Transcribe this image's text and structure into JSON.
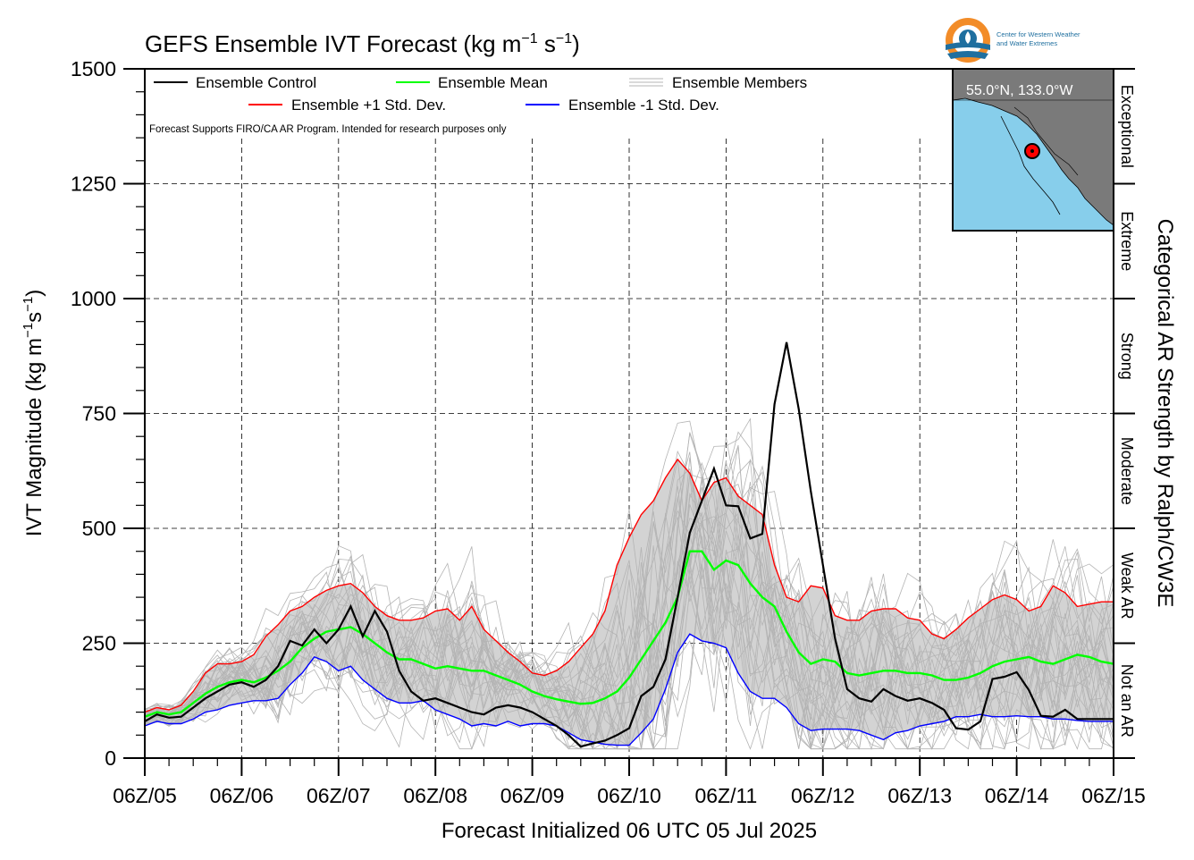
{
  "title_main": "GEFS Ensemble IVT Forecast (kg m",
  "title_exp1": "−1",
  "title_mid": " s",
  "title_exp2": "−1",
  "title_end": ")",
  "ylabel_main": "IVT Magnitude (kg m",
  "ylabel_exp1": "−1",
  "ylabel_mid": "s",
  "ylabel_exp2": "−1",
  "ylabel_end": ")",
  "xlabel": "Forecast Initialized 06 UTC 05 Jul 2025",
  "right_label": "Categorical AR Strength by Ralph/CW3E",
  "legend": {
    "control": "Ensemble Control",
    "mean": "Ensemble Mean",
    "members": "Ensemble Members",
    "plus": "Ensemble +1 Std. Dev.",
    "minus": "Ensemble -1 Std. Dev."
  },
  "disclaimer": "Forecast Supports FIRO/CA AR Program. Intended for research purposes only",
  "logo": {
    "line1": "Center for Western Weather",
    "line2": "and Water Extremes"
  },
  "inset_map": {
    "location_label": "55.0°N, 133.0°W",
    "land_color": "#7a7a7a",
    "water_color": "#87ceeb"
  },
  "categories": [
    {
      "label": "Not an AR",
      "from": 0,
      "to": 250
    },
    {
      "label": "Weak AR",
      "from": 250,
      "to": 500
    },
    {
      "label": "Moderate",
      "from": 500,
      "to": 750
    },
    {
      "label": "Strong",
      "from": 750,
      "to": 1000
    },
    {
      "label": "Extreme",
      "from": 1000,
      "to": 1250
    },
    {
      "label": "Exceptional",
      "from": 1250,
      "to": 1500
    }
  ],
  "chart_data": {
    "type": "line",
    "title": "GEFS Ensemble IVT Forecast (kg m-1 s-1)",
    "xlabel": "Forecast Initialized 06 UTC 05 Jul 2025",
    "ylabel": "IVT Magnitude (kg m-1 s-1)",
    "ylim": [
      0,
      1500
    ],
    "xlim": [
      0,
      240
    ],
    "yticks": [
      0,
      250,
      500,
      750,
      1000,
      1250,
      1500
    ],
    "xticks": [
      0,
      24,
      48,
      72,
      96,
      120,
      144,
      168,
      192,
      216,
      240
    ],
    "xtick_labels": [
      "06Z/05",
      "06Z/06",
      "06Z/07",
      "06Z/08",
      "06Z/09",
      "06Z/10",
      "06Z/11",
      "06Z/12",
      "06Z/13",
      "06Z/14",
      "06Z/15"
    ],
    "x_unit": "forecast hour",
    "grid": true,
    "colors": {
      "control": "#000000",
      "mean": "#00ff00",
      "plus": "#ff0000",
      "minus": "#0000ff",
      "members": "#b4b4b4",
      "band": "#d3d3d3"
    },
    "series": [
      {
        "name": "Ensemble Control",
        "x": [
          0,
          3,
          6,
          9,
          12,
          15,
          18,
          21,
          24,
          27,
          30,
          33,
          36,
          39,
          42,
          45,
          48,
          51,
          54,
          57,
          60,
          63,
          66,
          69,
          72,
          75,
          78,
          81,
          84,
          87,
          90,
          93,
          96,
          99,
          102,
          105,
          108,
          111,
          114,
          117,
          120,
          123,
          126,
          129,
          132,
          135,
          138,
          141,
          144,
          147,
          150,
          153,
          156,
          159,
          162,
          165,
          168,
          171,
          174,
          177,
          180,
          183,
          186,
          189,
          192,
          195,
          198,
          201,
          204,
          207,
          210,
          213,
          216,
          219,
          222,
          225,
          228,
          231,
          234,
          237,
          240
        ],
        "values": [
          80,
          95,
          88,
          90,
          110,
          130,
          145,
          160,
          165,
          155,
          170,
          200,
          255,
          245,
          280,
          250,
          280,
          330,
          265,
          320,
          275,
          190,
          145,
          125,
          130,
          120,
          110,
          100,
          95,
          110,
          115,
          110,
          100,
          85,
          70,
          50,
          25,
          32,
          38,
          50,
          65,
          135,
          155,
          215,
          350,
          490,
          560,
          630,
          550,
          548,
          478,
          488,
          770,
          905,
          760,
          580,
          420,
          260,
          150,
          130,
          123,
          150,
          135,
          125,
          130,
          120,
          105,
          65,
          62,
          80,
          172,
          177,
          187,
          148,
          92,
          90,
          105,
          85,
          85,
          85,
          85
        ]
      },
      {
        "name": "Ensemble Mean",
        "x": [
          0,
          3,
          6,
          9,
          12,
          15,
          18,
          21,
          24,
          27,
          30,
          33,
          36,
          39,
          42,
          45,
          48,
          51,
          54,
          57,
          60,
          63,
          66,
          69,
          72,
          75,
          78,
          81,
          84,
          87,
          90,
          93,
          96,
          99,
          102,
          105,
          108,
          111,
          114,
          117,
          120,
          123,
          126,
          129,
          132,
          135,
          138,
          141,
          144,
          147,
          150,
          153,
          156,
          159,
          162,
          165,
          168,
          171,
          174,
          177,
          180,
          183,
          186,
          189,
          192,
          195,
          198,
          201,
          204,
          207,
          210,
          213,
          216,
          219,
          222,
          225,
          228,
          231,
          234,
          237,
          240
        ],
        "values": [
          90,
          100,
          95,
          100,
          120,
          140,
          155,
          165,
          170,
          165,
          175,
          190,
          210,
          240,
          260,
          275,
          280,
          285,
          270,
          250,
          230,
          215,
          215,
          205,
          195,
          200,
          195,
          190,
          190,
          180,
          170,
          160,
          145,
          135,
          128,
          123,
          118,
          120,
          130,
          145,
          175,
          215,
          255,
          295,
          350,
          450,
          450,
          410,
          430,
          420,
          380,
          350,
          330,
          275,
          230,
          205,
          215,
          210,
          185,
          180,
          185,
          190,
          190,
          185,
          185,
          180,
          170,
          170,
          175,
          185,
          200,
          210,
          215,
          220,
          210,
          205,
          215,
          225,
          220,
          210,
          205
        ]
      },
      {
        "name": "Ensemble +1 Std. Dev.",
        "x": [
          0,
          3,
          6,
          9,
          12,
          15,
          18,
          21,
          24,
          27,
          30,
          33,
          36,
          39,
          42,
          45,
          48,
          51,
          54,
          57,
          60,
          63,
          66,
          69,
          72,
          75,
          78,
          81,
          84,
          87,
          90,
          93,
          96,
          99,
          102,
          105,
          108,
          111,
          114,
          117,
          120,
          123,
          126,
          129,
          132,
          135,
          138,
          141,
          144,
          147,
          150,
          153,
          156,
          159,
          162,
          165,
          168,
          171,
          174,
          177,
          180,
          183,
          186,
          189,
          192,
          195,
          198,
          201,
          204,
          207,
          210,
          213,
          216,
          219,
          222,
          225,
          228,
          231,
          234,
          237,
          240
        ],
        "values": [
          100,
          110,
          105,
          115,
          145,
          185,
          205,
          205,
          210,
          225,
          265,
          290,
          320,
          330,
          350,
          365,
          375,
          380,
          360,
          330,
          310,
          300,
          300,
          305,
          320,
          325,
          300,
          330,
          280,
          255,
          230,
          210,
          185,
          180,
          190,
          210,
          240,
          270,
          320,
          420,
          480,
          530,
          560,
          610,
          650,
          620,
          560,
          600,
          610,
          570,
          550,
          530,
          420,
          350,
          340,
          375,
          370,
          310,
          300,
          300,
          320,
          325,
          325,
          305,
          300,
          270,
          260,
          280,
          305,
          325,
          345,
          355,
          345,
          320,
          330,
          375,
          360,
          330,
          335,
          340,
          340
        ]
      },
      {
        "name": "Ensemble -1 Std. Dev.",
        "x": [
          0,
          3,
          6,
          9,
          12,
          15,
          18,
          21,
          24,
          27,
          30,
          33,
          36,
          39,
          42,
          45,
          48,
          51,
          54,
          57,
          60,
          63,
          66,
          69,
          72,
          75,
          78,
          81,
          84,
          87,
          90,
          93,
          96,
          99,
          102,
          105,
          108,
          111,
          114,
          117,
          120,
          123,
          126,
          129,
          132,
          135,
          138,
          141,
          144,
          147,
          150,
          153,
          156,
          159,
          162,
          165,
          168,
          171,
          174,
          177,
          180,
          183,
          186,
          189,
          192,
          195,
          198,
          201,
          204,
          207,
          210,
          213,
          216,
          219,
          222,
          225,
          228,
          231,
          234,
          237,
          240
        ],
        "values": [
          70,
          80,
          75,
          75,
          85,
          100,
          105,
          115,
          120,
          125,
          125,
          130,
          160,
          185,
          220,
          210,
          190,
          200,
          170,
          150,
          130,
          120,
          120,
          125,
          105,
          95,
          85,
          70,
          75,
          70,
          80,
          70,
          75,
          75,
          70,
          55,
          40,
          35,
          30,
          28,
          28,
          55,
          85,
          150,
          230,
          270,
          255,
          250,
          240,
          185,
          145,
          130,
          130,
          110,
          75,
          60,
          63,
          63,
          63,
          60,
          50,
          40,
          55,
          60,
          70,
          75,
          80,
          90,
          90,
          95,
          90,
          90,
          92,
          90,
          90,
          85,
          85,
          82,
          80,
          80,
          80
        ]
      }
    ],
    "members_note": "30 ensemble member traces drawn in light gray; shaded band between ±1 std. dev."
  }
}
